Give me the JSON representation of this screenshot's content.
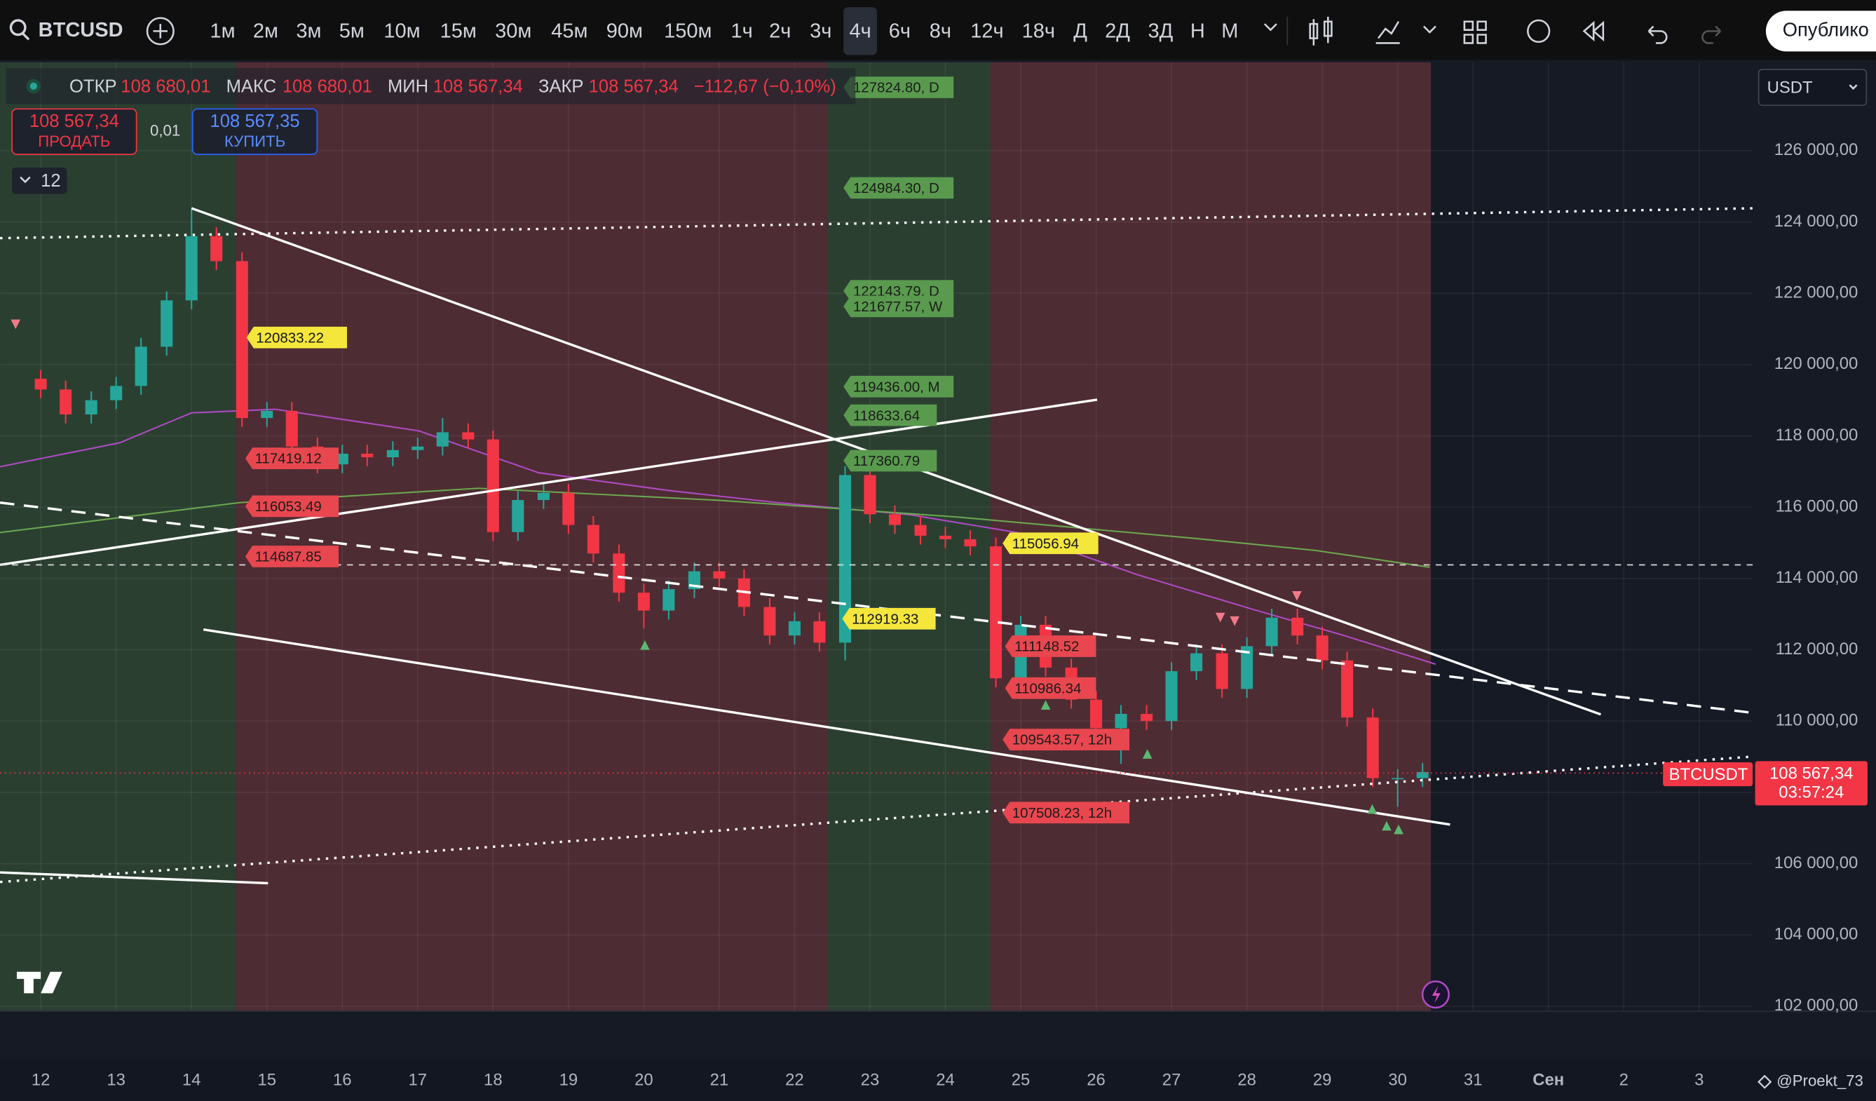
{
  "toolbar": {
    "symbol": "BTCUSD",
    "intervals": [
      "1м",
      "2м",
      "3м",
      "5м",
      "10м",
      "15м",
      "30м",
      "45м",
      "90м",
      "150м",
      "1ч",
      "2ч",
      "3ч",
      "4ч",
      "6ч",
      "8ч",
      "12ч",
      "18ч",
      "Д",
      "2Д",
      "3Д",
      "Н",
      "М"
    ],
    "publish": "Опублико"
  },
  "legend": {
    "open_label": "ОТКР",
    "open": "108 680,01",
    "high_label": "МАКС",
    "high": "108 680,01",
    "low_label": "МИН",
    "low": "108 567,34",
    "close_label": "ЗАКР",
    "close": "108 567,34",
    "change": "−112,67 (−0,10%)"
  },
  "trade": {
    "sell_price": "108 567,34",
    "sell": "ПРОДАТЬ",
    "spread": "0,01",
    "buy_price": "108 567,35",
    "buy": "КУПИТЬ",
    "indicators": "12"
  },
  "currency": "USDT",
  "price_badge": {
    "symbol": "BTCUSDT",
    "price": "108 567,34",
    "countdown": "03:57:24"
  },
  "author": "@Proekt_73",
  "annotations": [
    {
      "text": "127824.80, D",
      "color": "#5a9a4f"
    },
    {
      "text": "124984.30, D",
      "color": "#5a9a4f"
    },
    {
      "text": "122143.79, D",
      "color": "#5a9a4f"
    },
    {
      "text": "121677.57, W",
      "color": "#5a9a4f"
    },
    {
      "text": "119436.00, M",
      "color": "#5a9a4f"
    },
    {
      "text": "118633.64",
      "color": "#5a9a4f"
    },
    {
      "text": "117360.79",
      "color": "#5a9a4f"
    },
    {
      "text": "120833.22",
      "color": "#f5e63c"
    },
    {
      "text": "117419.12",
      "color": "#e8474f"
    },
    {
      "text": "116053.49",
      "color": "#e8474f"
    },
    {
      "text": "114687.85",
      "color": "#e8474f"
    },
    {
      "text": "115056.94",
      "color": "#f5e63c"
    },
    {
      "text": "112919.33",
      "color": "#f5e63c"
    },
    {
      "text": "111148.52",
      "color": "#e8474f"
    },
    {
      "text": "110986.34",
      "color": "#e8474f"
    },
    {
      "text": "109543.57, 12h",
      "color": "#e8474f"
    },
    {
      "text": "107508.23, 12h",
      "color": "#e8474f"
    }
  ],
  "chart_data": {
    "type": "candlestick",
    "up_color": "#26a69a",
    "down_color": "#f23645",
    "x": [
      12,
      12.33,
      12.67,
      13,
      13.33,
      13.67,
      14,
      14.33,
      14.67,
      15,
      15.33,
      15.67,
      16,
      16.33,
      16.67,
      17,
      17.33,
      17.67,
      18,
      18.33,
      18.67,
      19,
      19.33,
      19.67,
      20,
      20.33,
      20.67,
      21,
      21.33,
      21.67,
      22,
      22.33,
      22.67,
      23,
      23.33,
      23.67,
      24,
      24.33,
      24.67,
      25,
      25.33,
      25.67,
      26,
      26.33,
      26.67,
      27,
      27.33,
      27.67,
      28,
      28.33,
      28.67,
      29,
      29.33,
      29.67,
      30,
      30.33
    ],
    "open": [
      119600,
      119300,
      118600,
      119000,
      119400,
      120500,
      121800,
      123600,
      122900,
      118500,
      118700,
      117700,
      117200,
      117500,
      117400,
      117600,
      117700,
      118100,
      117900,
      115300,
      116200,
      116400,
      115500,
      114700,
      113600,
      113100,
      113700,
      114200,
      114000,
      113200,
      112400,
      112800,
      112200,
      116900,
      115800,
      115500,
      115200,
      115100,
      114900,
      111200,
      112700,
      111500,
      110600,
      109800,
      110200,
      110000,
      111400,
      111900,
      110900,
      112100,
      112900,
      112400,
      111700,
      110100,
      108400,
      108400
    ],
    "high": [
      119850,
      119550,
      119250,
      119650,
      120750,
      122050,
      124350,
      123850,
      123150,
      118950,
      118950,
      117950,
      117750,
      117750,
      117850,
      117950,
      118500,
      118350,
      118150,
      116450,
      116650,
      116650,
      115750,
      114950,
      113850,
      113950,
      114450,
      114450,
      114250,
      113450,
      113050,
      113050,
      117150,
      117150,
      116050,
      115750,
      115450,
      115350,
      115150,
      112950,
      112950,
      111750,
      110850,
      110450,
      110450,
      111650,
      112150,
      112150,
      112350,
      113150,
      113150,
      112650,
      111950,
      110350,
      108650,
      108820
    ],
    "low": [
      119050,
      118350,
      118350,
      118750,
      119150,
      120250,
      121550,
      122650,
      118250,
      118250,
      117450,
      116950,
      116950,
      117150,
      117150,
      117350,
      117450,
      117650,
      115050,
      115050,
      115950,
      115250,
      114450,
      113350,
      112600,
      112850,
      113450,
      113750,
      112950,
      112150,
      112150,
      111950,
      111700,
      115550,
      115250,
      114950,
      114850,
      114650,
      110950,
      110950,
      111250,
      110350,
      109550,
      108800,
      109750,
      109750,
      111150,
      110650,
      110650,
      111850,
      112150,
      111450,
      109850,
      108150,
      107600,
      108150
    ],
    "close": [
      119300,
      118600,
      119000,
      119400,
      120500,
      121800,
      123600,
      122900,
      118500,
      118700,
      117700,
      117200,
      117500,
      117400,
      117600,
      117700,
      118100,
      117900,
      115300,
      116200,
      116400,
      115500,
      114700,
      113600,
      113100,
      113700,
      114200,
      114000,
      113200,
      112400,
      112800,
      112200,
      116900,
      115800,
      115500,
      115200,
      115100,
      114900,
      111200,
      112700,
      111500,
      110600,
      109800,
      110200,
      110000,
      111400,
      111900,
      110900,
      112100,
      112900,
      112400,
      111700,
      110100,
      108400,
      108400,
      108570
    ],
    "xlim": [
      11.46,
      34.71
    ],
    "xticks": [
      12,
      13,
      14,
      15,
      16,
      17,
      18,
      19,
      20,
      21,
      22,
      23,
      24,
      25,
      26,
      27,
      28,
      29,
      30,
      31,
      {
        "value": 32,
        "label": "Сен"
      },
      {
        "value": 33,
        "label": "2"
      },
      {
        "value": 34,
        "label": "3"
      }
    ],
    "ylim": [
      101860,
      128480
    ],
    "yticks": [
      {
        "value": 102000,
        "label": "102 000,00"
      },
      {
        "value": 104000,
        "label": "104 000,00"
      },
      {
        "value": 106000,
        "label": "106 000,00"
      },
      {
        "value": 108000,
        "label": "108 000,00"
      },
      {
        "value": 110000,
        "label": "110 000,00"
      },
      {
        "value": 112000,
        "label": "112 000,00"
      },
      {
        "value": 114000,
        "label": "114 000,00"
      },
      {
        "value": 116000,
        "label": "116 000,00"
      },
      {
        "value": 118000,
        "label": "118 000,00"
      },
      {
        "value": 120000,
        "label": "120 000,00"
      },
      {
        "value": 122000,
        "label": "122 000,00"
      },
      {
        "value": 124000,
        "label": "124 000,00"
      },
      {
        "value": 126000,
        "label": "126 000,00"
      }
    ],
    "grid": true
  }
}
